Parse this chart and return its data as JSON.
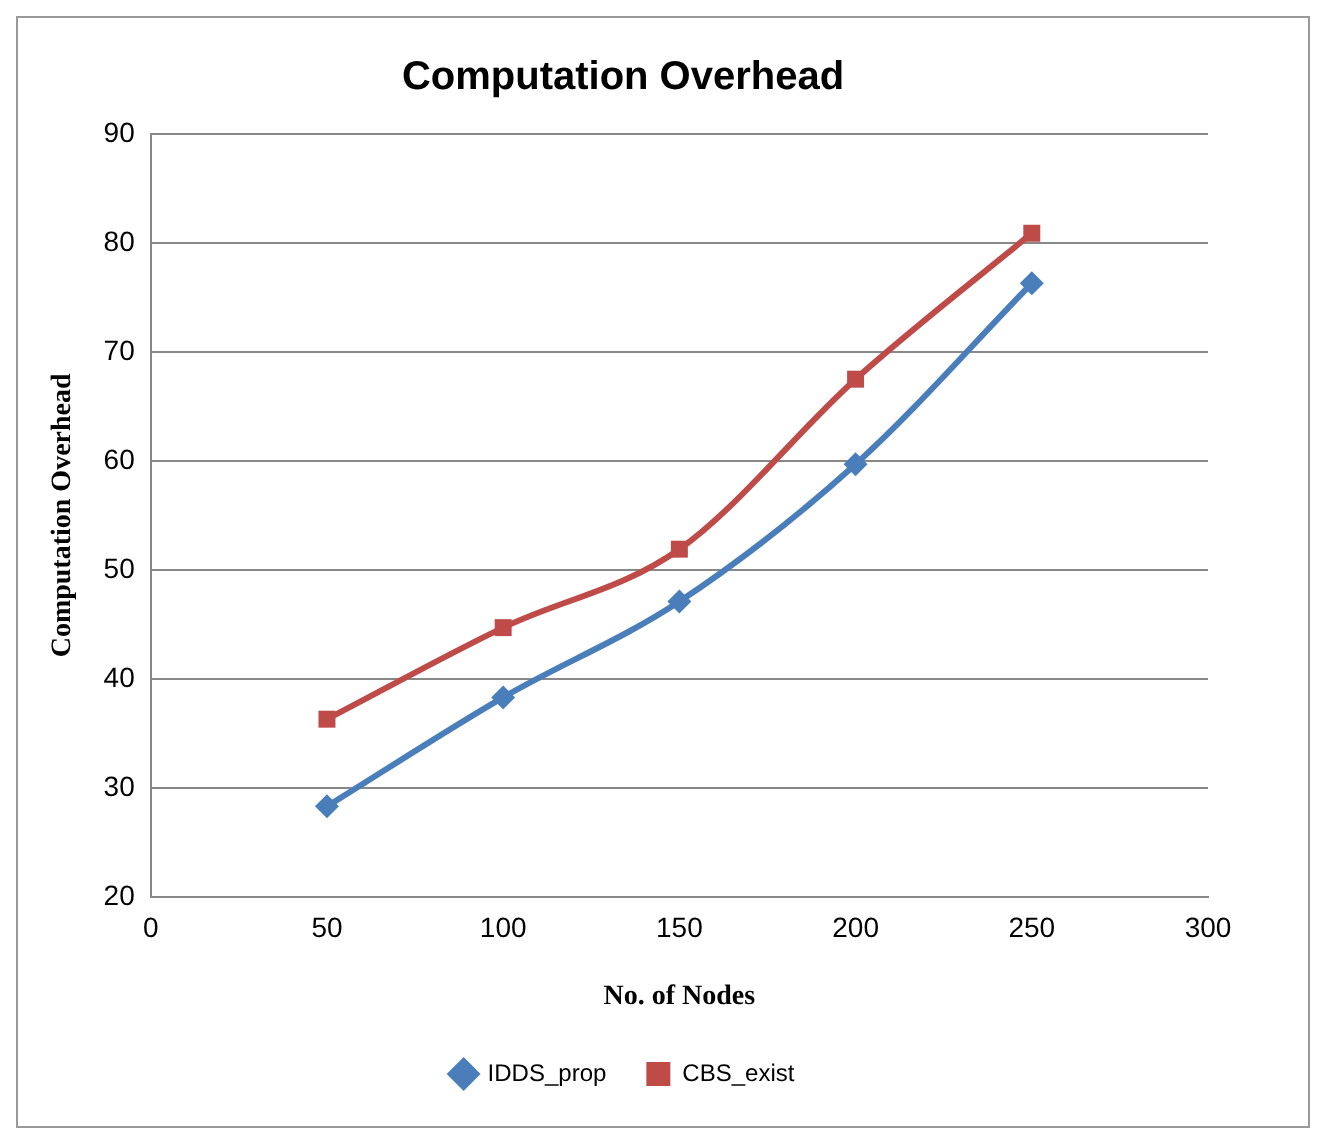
{
  "chart_data": {
    "type": "line",
    "title": "Computation Overhead",
    "xlabel": "No. of Nodes",
    "ylabel": "Computation Overhead",
    "x": [
      50,
      100,
      150,
      200,
      250
    ],
    "series": [
      {
        "name": "IDDS_prop",
        "color": "#4a7ebb",
        "marker": "diamond",
        "values": [
          28.3,
          38.3,
          47.1,
          59.7,
          76.3
        ]
      },
      {
        "name": "CBS_exist",
        "color": "#be4b48",
        "marker": "square",
        "values": [
          36.3,
          44.7,
          51.9,
          67.5,
          80.9
        ]
      }
    ],
    "xlim": [
      0,
      300
    ],
    "xticks": [
      0,
      50,
      100,
      150,
      200,
      250,
      300
    ],
    "ylim": [
      20,
      90
    ],
    "yticks": [
      20,
      30,
      40,
      50,
      60,
      70,
      80,
      90
    ],
    "grid": "y",
    "legend": "bottom"
  }
}
